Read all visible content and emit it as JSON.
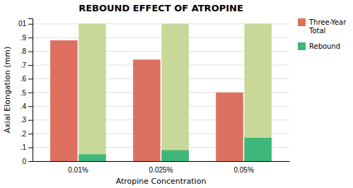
{
  "chart_data": {
    "type": "bar",
    "title": "REBOUND EFFECT OF ATROPINE",
    "xlabel": "Atropine Concentration",
    "ylabel": "Axial Elongation (mm)",
    "categories": [
      "0.01%",
      "0.025%",
      "0.05%"
    ],
    "series": [
      {
        "name": "Three-Year\nTotal",
        "color": "#DE7060",
        "values": [
          0.88,
          0.74,
          0.5
        ]
      },
      {
        "color": "#C8D898",
        "values": [
          1.0,
          1.0,
          1.0
        ]
      },
      {
        "name": "Rebound",
        "color": "#3DB87A",
        "values": [
          0.05,
          0.08,
          0.17
        ]
      }
    ],
    "ylim": [
      0,
      1.04
    ],
    "yticks": [
      0,
      {
        "value": 0.1,
        "label": ".1"
      },
      {
        "value": 0.2,
        "label": ".2"
      },
      {
        "value": 0.3,
        "label": ".3"
      },
      {
        "value": 0.4,
        "label": ".4"
      },
      {
        "value": 0.5,
        "label": ".5"
      },
      {
        "value": 0.6,
        "label": ".6"
      },
      {
        "value": 0.7,
        "label": ".7"
      },
      {
        "value": 0.8,
        "label": ".8"
      },
      {
        "value": 0.9,
        "label": ".9"
      },
      {
        "value": 1.0,
        "label": "01"
      }
    ],
    "grid": true,
    "legend": "upper right"
  }
}
